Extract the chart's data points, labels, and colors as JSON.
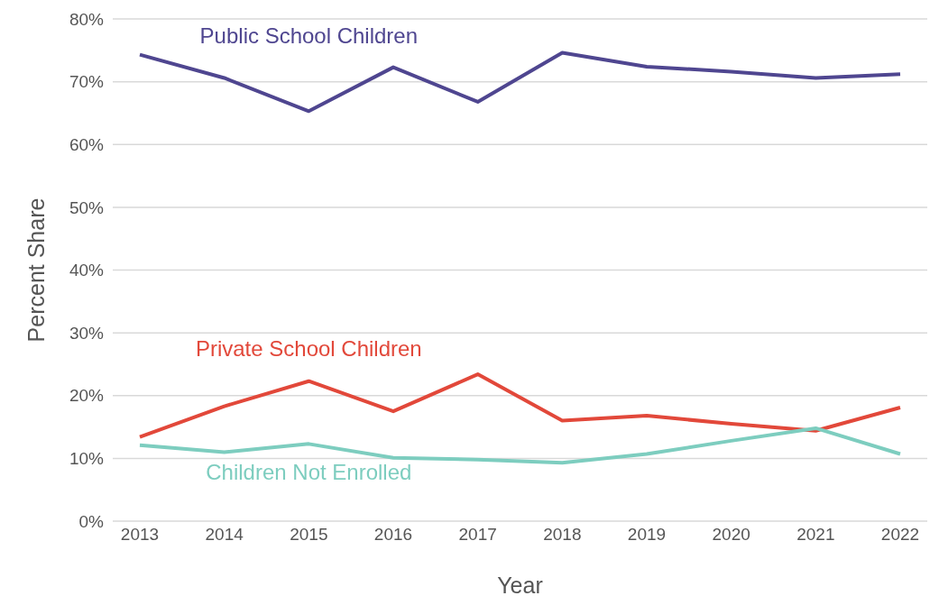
{
  "chart_data": {
    "type": "line",
    "xlabel": "Year",
    "ylabel": "Percent Share",
    "categories": [
      "2013",
      "2014",
      "2015",
      "2016",
      "2017",
      "2018",
      "2019",
      "2020",
      "2021",
      "2022"
    ],
    "series": [
      {
        "name": "Public School Children",
        "color": "#4f4690",
        "values": [
          74.3,
          70.6,
          65.3,
          72.3,
          66.8,
          74.6,
          72.4,
          71.6,
          70.6,
          71.2
        ]
      },
      {
        "name": "Private School Children",
        "color": "#e2483a",
        "values": [
          13.4,
          18.3,
          22.3,
          17.5,
          23.4,
          16.0,
          16.8,
          15.5,
          14.4,
          18.1
        ]
      },
      {
        "name": "Children Not Enrolled",
        "color": "#7dcdbf",
        "values": [
          12.1,
          11.0,
          12.3,
          10.1,
          9.8,
          9.3,
          10.7,
          12.8,
          14.8,
          10.7
        ]
      }
    ],
    "ylim": [
      0,
      80
    ],
    "yticks": [
      {
        "value": 0,
        "label": "0%"
      },
      {
        "value": 10,
        "label": "10%"
      },
      {
        "value": 20,
        "label": "20%"
      },
      {
        "value": 30,
        "label": "30%"
      },
      {
        "value": 40,
        "label": "40%"
      },
      {
        "value": 50,
        "label": "50%"
      },
      {
        "value": 60,
        "label": "60%"
      },
      {
        "value": 70,
        "label": "70%"
      },
      {
        "value": 80,
        "label": "80%"
      }
    ],
    "grid": "y",
    "legend": false,
    "marker": "none",
    "line_style": "solid"
  }
}
